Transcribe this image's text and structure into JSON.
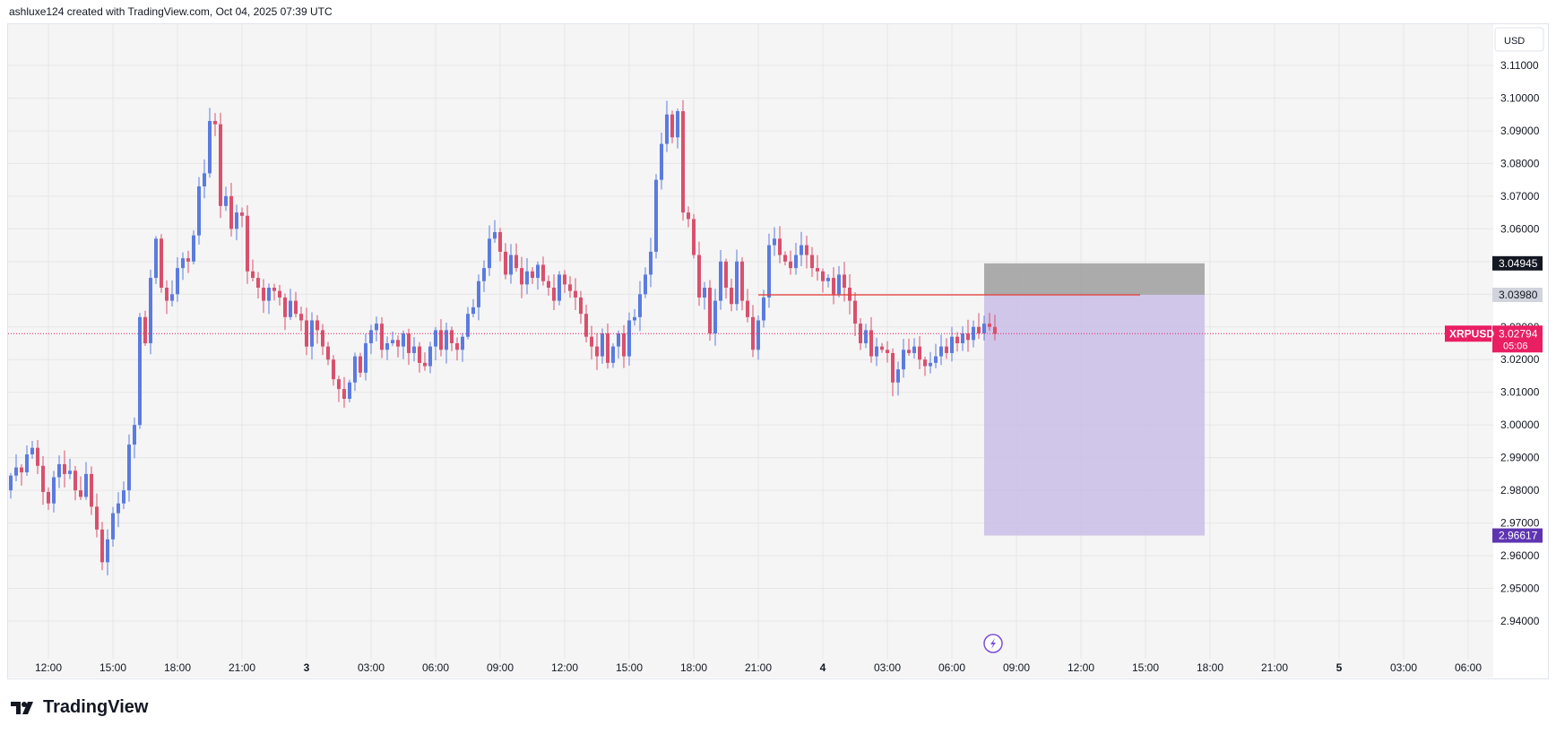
{
  "header": {
    "caption": "ashluxe124 created with TradingView.com, Oct 04, 2025 07:39 UTC"
  },
  "footer": {
    "brand": "TradingView"
  },
  "colors": {
    "up": "#5b7be0",
    "down": "#d9506d",
    "current_price_tag": "#e91e63",
    "target_tag": "#5e35b1",
    "stop_zone": "#a3a3a3",
    "target_zone": "#c9bde6"
  },
  "chart_data": {
    "type": "candlestick",
    "symbol": "XRPUSD",
    "currency": "USD",
    "ylim": [
      2.935,
      3.115
    ],
    "yticks": [
      "3.11000",
      "3.10000",
      "3.09000",
      "3.08000",
      "3.07000",
      "3.06000",
      "3.05000",
      "3.04000",
      "3.03000",
      "3.02000",
      "3.01000",
      "3.00000",
      "2.99000",
      "2.98000",
      "2.97000",
      "2.96000",
      "2.95000",
      "2.94000"
    ],
    "xticks": [
      {
        "label": "12:00",
        "idx": 7
      },
      {
        "label": "15:00",
        "idx": 19
      },
      {
        "label": "18:00",
        "idx": 31
      },
      {
        "label": "21:00",
        "idx": 43
      },
      {
        "label": "3",
        "idx": 55
      },
      {
        "label": "03:00",
        "idx": 67
      },
      {
        "label": "06:00",
        "idx": 79
      },
      {
        "label": "09:00",
        "idx": 91
      },
      {
        "label": "12:00",
        "idx": 103
      },
      {
        "label": "15:00",
        "idx": 115
      },
      {
        "label": "18:00",
        "idx": 127
      },
      {
        "label": "21:00",
        "idx": 139
      },
      {
        "label": "4",
        "idx": 151
      },
      {
        "label": "03:00",
        "idx": 163
      },
      {
        "label": "06:00",
        "idx": 175
      },
      {
        "label": "09:00",
        "idx": 187
      },
      {
        "label": "12:00",
        "idx": 199
      },
      {
        "label": "15:00",
        "idx": 211
      },
      {
        "label": "18:00",
        "idx": 223
      },
      {
        "label": "21:00",
        "idx": 235
      },
      {
        "label": "5",
        "idx": 247
      },
      {
        "label": "03:00",
        "idx": 259
      },
      {
        "label": "06:00",
        "idx": 271
      }
    ],
    "total_slots": 275,
    "current_price": {
      "value": 3.02794,
      "label": "3.02794",
      "countdown": "05:06"
    },
    "price_labels": [
      {
        "value": 3.04945,
        "label": "3.04945",
        "style": "dark"
      },
      {
        "value": 3.0398,
        "label": "3.03980",
        "style": "grey"
      },
      {
        "value": 2.96617,
        "label": "2.96617",
        "style": "purple"
      }
    ],
    "position_tool": {
      "start_idx": 181,
      "end_idx": 222,
      "stop": 3.04945,
      "entry": 3.0398,
      "target": 2.96617
    },
    "horizontal_ray": {
      "value": 3.0398,
      "start_idx": 139,
      "end_idx": 210
    },
    "closes": [
      2.9845,
      2.987,
      2.9855,
      2.991,
      2.993,
      2.9875,
      2.9795,
      2.976,
      2.984,
      2.988,
      2.985,
      2.986,
      2.98,
      2.978,
      2.985,
      2.975,
      2.968,
      2.958,
      2.965,
      2.973,
      2.976,
      2.98,
      2.994,
      3.0,
      3.033,
      3.025,
      3.045,
      3.057,
      3.042,
      3.038,
      3.04,
      3.048,
      3.051,
      3.05,
      3.058,
      3.073,
      3.077,
      3.093,
      3.092,
      3.067,
      3.07,
      3.06,
      3.065,
      3.064,
      3.047,
      3.045,
      3.042,
      3.038,
      3.042,
      3.041,
      3.039,
      3.033,
      3.038,
      3.034,
      3.032,
      3.024,
      3.032,
      3.029,
      3.024,
      3.02,
      3.014,
      3.011,
      3.008,
      3.013,
      3.021,
      3.016,
      3.025,
      3.029,
      3.031,
      3.023,
      3.025,
      3.026,
      3.024,
      3.028,
      3.022,
      3.024,
      3.019,
      3.018,
      3.024,
      3.029,
      3.023,
      3.029,
      3.025,
      3.023,
      3.027,
      3.034,
      3.036,
      3.044,
      3.048,
      3.057,
      3.059,
      3.053,
      3.046,
      3.052,
      3.048,
      3.043,
      3.047,
      3.045,
      3.049,
      3.044,
      3.042,
      3.038,
      3.046,
      3.043,
      3.041,
      3.039,
      3.034,
      3.027,
      3.024,
      3.021,
      3.028,
      3.019,
      3.024,
      3.028,
      3.021,
      3.032,
      3.033,
      3.04,
      3.046,
      3.053,
      3.075,
      3.086,
      3.095,
      3.088,
      3.096,
      3.065,
      3.063,
      3.052,
      3.039,
      3.042,
      3.028,
      3.038,
      3.05,
      3.042,
      3.037,
      3.05,
      3.038,
      3.033,
      3.023,
      3.032,
      3.039,
      3.055,
      3.057,
      3.052,
      3.05,
      3.048,
      3.052,
      3.055,
      3.052,
      3.048,
      3.047,
      3.044,
      3.045,
      3.04,
      3.046,
      3.042,
      3.038,
      3.031,
      3.025,
      3.029,
      3.021,
      3.024,
      3.023,
      3.022,
      3.013,
      3.017,
      3.023,
      3.022,
      3.024,
      3.02,
      3.018,
      3.019,
      3.021,
      3.024,
      3.022,
      3.027,
      3.025,
      3.028,
      3.026,
      3.03,
      3.028,
      3.031,
      3.03,
      3.0279
    ],
    "opens_start": 2.98
  }
}
